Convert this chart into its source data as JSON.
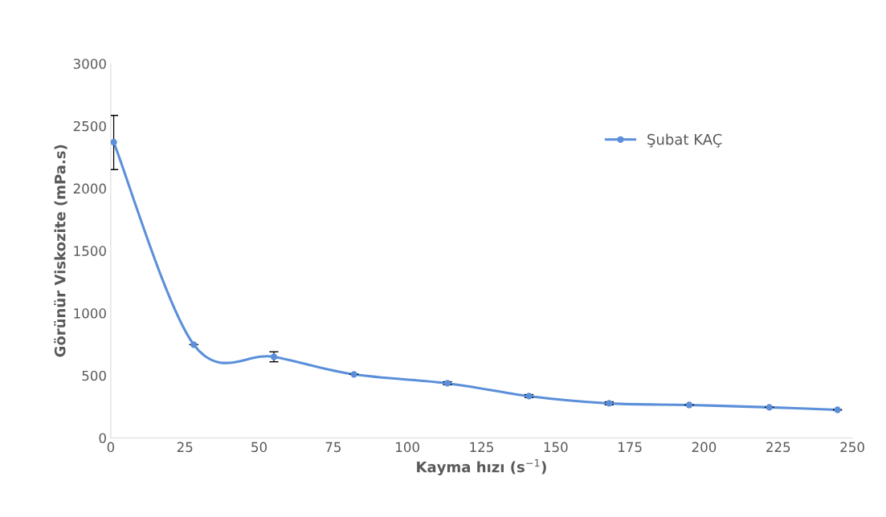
{
  "chart_data": {
    "type": "line",
    "xlabel": "Kayma hızı (s$^{−1}$)",
    "ylabel": "Görünür Viskozite (mPa.s)",
    "x": [
      1,
      28,
      55,
      82,
      113.5,
      141,
      168,
      195,
      222,
      245
    ],
    "series": [
      {
        "name": "Şubat KAÇ",
        "color": "#5b8fd9",
        "values": [
          2370,
          747,
          650,
          509,
          438,
          335,
          277,
          264,
          245,
          225
        ],
        "errors": [
          [
            2150,
            2585
          ],
          null,
          40,
          null,
          12,
          12,
          12,
          null,
          null,
          null
        ]
      }
    ],
    "xlim": [
      0,
      250
    ],
    "xticks": [
      0,
      25,
      50,
      75,
      100,
      125,
      150,
      175,
      200,
      225,
      250
    ],
    "ylim": [
      0,
      3000
    ],
    "yticks": [
      0,
      500,
      1000,
      1500,
      2000,
      2500,
      3000
    ],
    "grid": false,
    "legend": "top right",
    "marker": "circle",
    "line_style": "solid"
  }
}
